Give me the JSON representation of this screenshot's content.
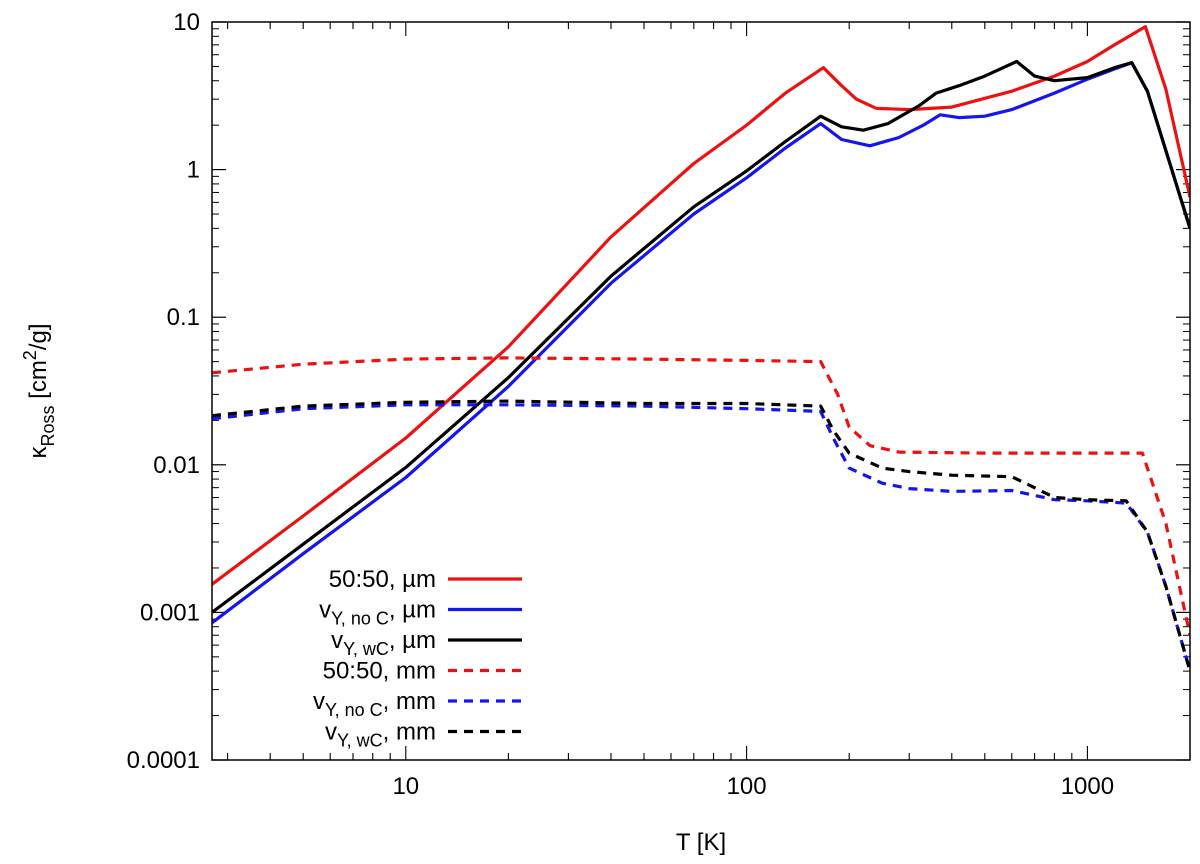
{
  "chart_data": {
    "type": "line",
    "title": "",
    "xlabel": "T [K]",
    "ylabel_parts": {
      "kappa": "κ",
      "sub": "Ross",
      "unit_open": " [cm",
      "sup": "2",
      "unit_close": "/g]"
    },
    "xscale": "log",
    "yscale": "log",
    "xlim": [
      2.7,
      2000
    ],
    "ylim": [
      0.0001,
      10
    ],
    "x_ticks": [
      {
        "value": 10,
        "label": "10"
      },
      {
        "value": 100,
        "label": "100"
      },
      {
        "value": 1000,
        "label": "1000"
      }
    ],
    "y_ticks": [
      {
        "value": 10,
        "label": "10"
      },
      {
        "value": 1,
        "label": "1"
      },
      {
        "value": 0.1,
        "label": "0.1"
      },
      {
        "value": 0.01,
        "label": "0.01"
      },
      {
        "value": 0.001,
        "label": "0.001"
      },
      {
        "value": 0.0001,
        "label": "0.0001"
      }
    ],
    "legend_position": "bottom-left",
    "series": [
      {
        "name": "50:50, µm",
        "legend": {
          "main": "50:50, µm",
          "base": "",
          "sub": "",
          "tail": ""
        },
        "color": "#ee1111",
        "dash": false,
        "points": [
          [
            2.7,
            0.00155
          ],
          [
            5,
            0.0045
          ],
          [
            10,
            0.0152
          ],
          [
            20,
            0.063
          ],
          [
            40,
            0.35
          ],
          [
            70,
            1.1
          ],
          [
            100,
            2.0
          ],
          [
            130,
            3.3
          ],
          [
            168,
            4.9
          ],
          [
            190,
            3.7
          ],
          [
            210,
            3.0
          ],
          [
            240,
            2.6
          ],
          [
            300,
            2.55
          ],
          [
            400,
            2.65
          ],
          [
            600,
            3.4
          ],
          [
            800,
            4.3
          ],
          [
            1000,
            5.4
          ],
          [
            1200,
            7.0
          ],
          [
            1480,
            9.3
          ],
          [
            1700,
            3.5
          ],
          [
            2000,
            0.65
          ]
        ]
      },
      {
        "name": "vY, no C, µm",
        "legend": {
          "main": "",
          "base": "v",
          "sub": "Y, no C",
          "tail": ", µm"
        },
        "color": "#1515ee",
        "dash": false,
        "points": [
          [
            2.7,
            0.00085
          ],
          [
            5,
            0.0025
          ],
          [
            10,
            0.0082
          ],
          [
            20,
            0.034
          ],
          [
            40,
            0.17
          ],
          [
            70,
            0.5
          ],
          [
            100,
            0.88
          ],
          [
            130,
            1.4
          ],
          [
            165,
            2.05
          ],
          [
            190,
            1.6
          ],
          [
            230,
            1.45
          ],
          [
            280,
            1.65
          ],
          [
            330,
            2.0
          ],
          [
            370,
            2.35
          ],
          [
            420,
            2.25
          ],
          [
            500,
            2.3
          ],
          [
            600,
            2.55
          ],
          [
            800,
            3.3
          ],
          [
            1000,
            4.1
          ],
          [
            1200,
            4.8
          ],
          [
            1350,
            5.3
          ],
          [
            1500,
            3.4
          ],
          [
            2000,
            0.4
          ]
        ]
      },
      {
        "name": "vY, wC, µm",
        "legend": {
          "main": "",
          "base": "v",
          "sub": "Y, wC",
          "tail": ", µm"
        },
        "color": "#000000",
        "dash": false,
        "points": [
          [
            2.7,
            0.001
          ],
          [
            5,
            0.0029
          ],
          [
            10,
            0.0096
          ],
          [
            20,
            0.039
          ],
          [
            40,
            0.19
          ],
          [
            70,
            0.56
          ],
          [
            100,
            0.98
          ],
          [
            130,
            1.55
          ],
          [
            165,
            2.3
          ],
          [
            190,
            1.95
          ],
          [
            220,
            1.85
          ],
          [
            260,
            2.05
          ],
          [
            320,
            2.7
          ],
          [
            360,
            3.3
          ],
          [
            420,
            3.7
          ],
          [
            500,
            4.3
          ],
          [
            620,
            5.4
          ],
          [
            700,
            4.3
          ],
          [
            800,
            4.0
          ],
          [
            1000,
            4.2
          ],
          [
            1200,
            4.9
          ],
          [
            1350,
            5.3
          ],
          [
            1500,
            3.4
          ],
          [
            2000,
            0.4
          ]
        ]
      },
      {
        "name": "50:50, mm",
        "legend": {
          "main": "50:50, mm",
          "base": "",
          "sub": "",
          "tail": ""
        },
        "color": "#ee1111",
        "dash": true,
        "points": [
          [
            2.7,
            0.042
          ],
          [
            5,
            0.048
          ],
          [
            10,
            0.052
          ],
          [
            20,
            0.053
          ],
          [
            50,
            0.052
          ],
          [
            100,
            0.051
          ],
          [
            165,
            0.05
          ],
          [
            185,
            0.03
          ],
          [
            200,
            0.018
          ],
          [
            230,
            0.0135
          ],
          [
            280,
            0.0122
          ],
          [
            500,
            0.012
          ],
          [
            1000,
            0.012
          ],
          [
            1450,
            0.012
          ],
          [
            1700,
            0.004
          ],
          [
            2000,
            0.0007
          ]
        ]
      },
      {
        "name": "vY, no C, mm",
        "legend": {
          "main": "",
          "base": "v",
          "sub": "Y, no C",
          "tail": ", mm"
        },
        "color": "#1515ee",
        "dash": true,
        "points": [
          [
            2.7,
            0.0205
          ],
          [
            5,
            0.024
          ],
          [
            10,
            0.0255
          ],
          [
            20,
            0.0255
          ],
          [
            50,
            0.025
          ],
          [
            100,
            0.024
          ],
          [
            165,
            0.023
          ],
          [
            180,
            0.015
          ],
          [
            200,
            0.0095
          ],
          [
            250,
            0.0075
          ],
          [
            300,
            0.0069
          ],
          [
            400,
            0.0066
          ],
          [
            600,
            0.0067
          ],
          [
            800,
            0.0058
          ],
          [
            1000,
            0.0057
          ],
          [
            1300,
            0.0055
          ],
          [
            1500,
            0.0035
          ],
          [
            1700,
            0.0015
          ],
          [
            2000,
            0.0004
          ]
        ]
      },
      {
        "name": "vY, wC, mm",
        "legend": {
          "main": "",
          "base": "v",
          "sub": "Y, wC",
          "tail": ", mm"
        },
        "color": "#000000",
        "dash": true,
        "points": [
          [
            2.7,
            0.0215
          ],
          [
            5,
            0.025
          ],
          [
            10,
            0.0265
          ],
          [
            20,
            0.027
          ],
          [
            50,
            0.026
          ],
          [
            100,
            0.026
          ],
          [
            165,
            0.025
          ],
          [
            180,
            0.017
          ],
          [
            200,
            0.012
          ],
          [
            250,
            0.0095
          ],
          [
            300,
            0.009
          ],
          [
            400,
            0.0085
          ],
          [
            600,
            0.0083
          ],
          [
            700,
            0.007
          ],
          [
            800,
            0.006
          ],
          [
            1000,
            0.0058
          ],
          [
            1300,
            0.0057
          ],
          [
            1500,
            0.0035
          ],
          [
            1700,
            0.0015
          ],
          [
            2000,
            0.0004
          ]
        ]
      }
    ]
  }
}
